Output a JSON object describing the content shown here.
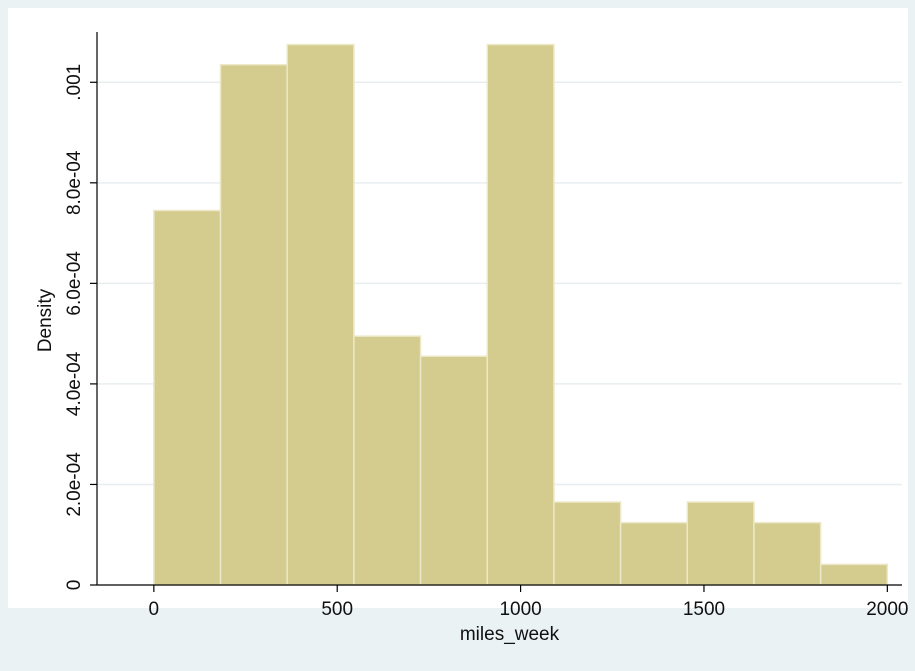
{
  "chart_data": {
    "type": "bar",
    "title": "",
    "xlabel": "miles_week",
    "ylabel": "Density",
    "x_ticks": [
      {
        "value": 0,
        "label": "0"
      },
      {
        "value": 500,
        "label": "500"
      },
      {
        "value": 1000,
        "label": "1000"
      },
      {
        "value": 1500,
        "label": "1500"
      },
      {
        "value": 2000,
        "label": "2000"
      }
    ],
    "y_ticks": [
      {
        "value": 0,
        "label": "0"
      },
      {
        "value": 0.0002,
        "label": "2.0e-04"
      },
      {
        "value": 0.0004,
        "label": "4.0e-04"
      },
      {
        "value": 0.0006,
        "label": "6.0e-04"
      },
      {
        "value": 0.0008,
        "label": "8.0e-04"
      },
      {
        "value": 0.001,
        "label": ".001"
      }
    ],
    "xlim": [
      -155,
      2040
    ],
    "ylim": [
      0,
      0.0011
    ],
    "grid": true,
    "bins": [
      {
        "x0": 0,
        "x1": 181.8,
        "density": 0.000745
      },
      {
        "x0": 181.8,
        "x1": 363.6,
        "density": 0.001035
      },
      {
        "x0": 363.6,
        "x1": 545.5,
        "density": 0.001075
      },
      {
        "x0": 545.5,
        "x1": 727.3,
        "density": 0.000495
      },
      {
        "x0": 727.3,
        "x1": 909.1,
        "density": 0.000455
      },
      {
        "x0": 909.1,
        "x1": 1090.9,
        "density": 0.001075
      },
      {
        "x0": 1090.9,
        "x1": 1272.7,
        "density": 0.000165
      },
      {
        "x0": 1272.7,
        "x1": 1454.5,
        "density": 0.000124
      },
      {
        "x0": 1454.5,
        "x1": 1636.4,
        "density": 0.000165
      },
      {
        "x0": 1636.4,
        "x1": 1818.2,
        "density": 0.000124
      },
      {
        "x0": 1818.2,
        "x1": 2000,
        "density": 4.1e-05
      }
    ],
    "colors": {
      "bar_fill": "#d4cb8e",
      "bar_stroke": "#ece8c8",
      "plot_bg": "#ffffff",
      "outer_bg": "#eaf2f3",
      "grid": "#e8eef0",
      "axis": "#000000"
    }
  }
}
